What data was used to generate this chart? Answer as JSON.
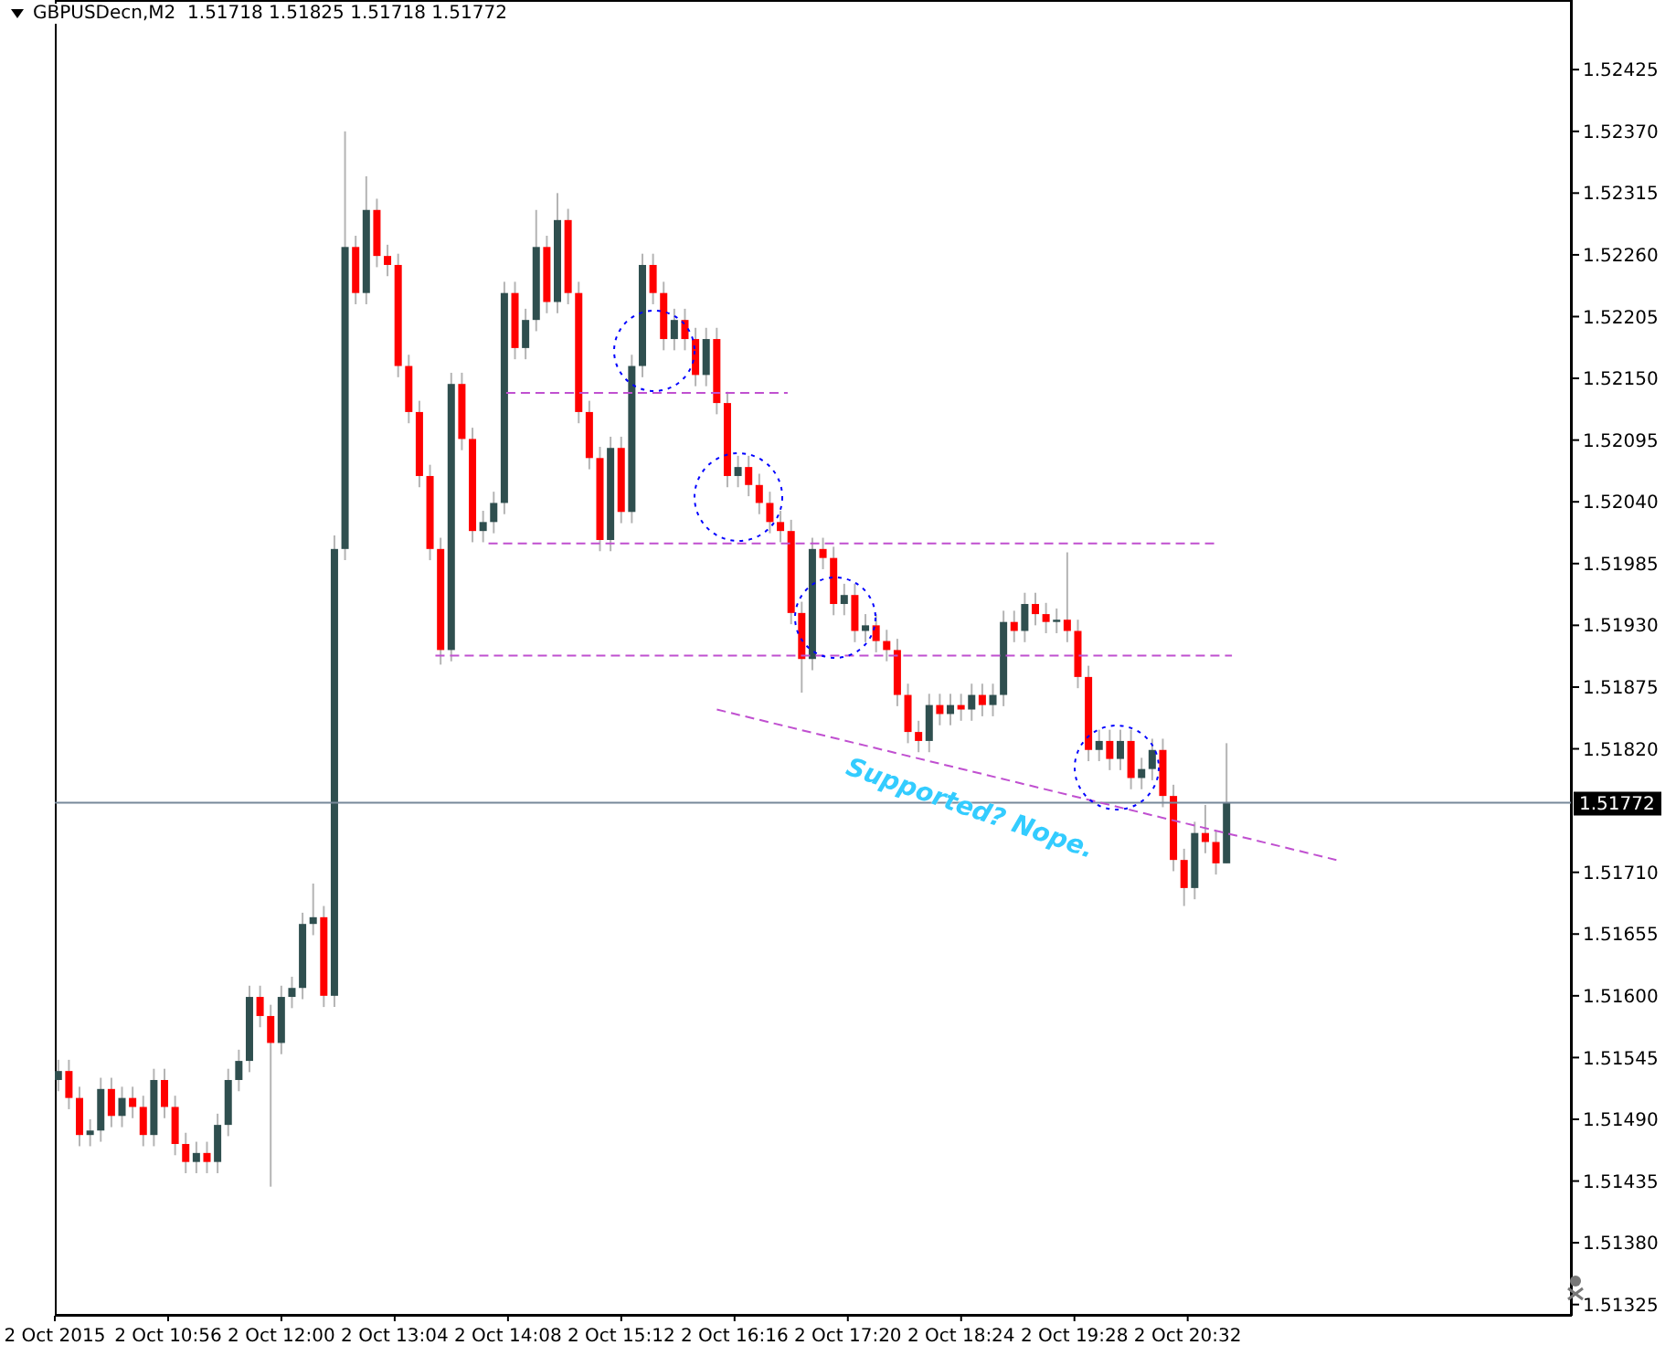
{
  "chart_data": {
    "type": "candlestick",
    "title": "GBPUSDecn,M2  1.51718 1.51825 1.51718 1.51772",
    "x": [
      "2015-10-02T09:54",
      "2015-10-02T10:00",
      "2015-10-02T10:06",
      "2015-10-02T10:12",
      "2015-10-02T10:18",
      "2015-10-02T10:24",
      "2015-10-02T10:30",
      "2015-10-02T10:36",
      "2015-10-02T10:42",
      "2015-10-02T10:48",
      "2015-10-02T10:54",
      "2015-10-02T11:00",
      "2015-10-02T11:06",
      "2015-10-02T11:12",
      "2015-10-02T11:18",
      "2015-10-02T11:24",
      "2015-10-02T11:30",
      "2015-10-02T11:36",
      "2015-10-02T11:42",
      "2015-10-02T11:48",
      "2015-10-02T11:54",
      "2015-10-02T12:00",
      "2015-10-02T12:06",
      "2015-10-02T12:12",
      "2015-10-02T12:18",
      "2015-10-02T12:24",
      "2015-10-02T12:30",
      "2015-10-02T12:36",
      "2015-10-02T12:42",
      "2015-10-02T12:48",
      "2015-10-02T12:54",
      "2015-10-02T13:00",
      "2015-10-02T13:06",
      "2015-10-02T13:12",
      "2015-10-02T13:18",
      "2015-10-02T13:24",
      "2015-10-02T13:30",
      "2015-10-02T13:36",
      "2015-10-02T13:42",
      "2015-10-02T13:48",
      "2015-10-02T13:54",
      "2015-10-02T14:00",
      "2015-10-02T14:06",
      "2015-10-02T14:12",
      "2015-10-02T14:18",
      "2015-10-02T14:24",
      "2015-10-02T14:30",
      "2015-10-02T14:36",
      "2015-10-02T14:42",
      "2015-10-02T14:48",
      "2015-10-02T14:54",
      "2015-10-02T15:00",
      "2015-10-02T15:06",
      "2015-10-02T15:12",
      "2015-10-02T15:18",
      "2015-10-02T15:24",
      "2015-10-02T15:30",
      "2015-10-02T15:36",
      "2015-10-02T15:42",
      "2015-10-02T15:48",
      "2015-10-02T15:54",
      "2015-10-02T16:00",
      "2015-10-02T16:06",
      "2015-10-02T16:12",
      "2015-10-02T16:18",
      "2015-10-02T16:24",
      "2015-10-02T16:30",
      "2015-10-02T16:36",
      "2015-10-02T16:42",
      "2015-10-02T16:48",
      "2015-10-02T16:54",
      "2015-10-02T17:00",
      "2015-10-02T17:06",
      "2015-10-02T17:12",
      "2015-10-02T17:18",
      "2015-10-02T17:24",
      "2015-10-02T17:30",
      "2015-10-02T17:36",
      "2015-10-02T17:42",
      "2015-10-02T17:48",
      "2015-10-02T17:54",
      "2015-10-02T18:00",
      "2015-10-02T18:06",
      "2015-10-02T18:12",
      "2015-10-02T18:18",
      "2015-10-02T18:24",
      "2015-10-02T18:30",
      "2015-10-02T18:36",
      "2015-10-02T18:42",
      "2015-10-02T18:48",
      "2015-10-02T18:54",
      "2015-10-02T19:00",
      "2015-10-02T19:06",
      "2015-10-02T19:12",
      "2015-10-02T19:18",
      "2015-10-02T19:24",
      "2015-10-02T19:30",
      "2015-10-02T19:36",
      "2015-10-02T19:42",
      "2015-10-02T19:48",
      "2015-10-02T19:54",
      "2015-10-02T20:00",
      "2015-10-02T20:06",
      "2015-10-02T20:12",
      "2015-10-02T20:18",
      "2015-10-02T20:24",
      "2015-10-02T20:30",
      "2015-10-02T20:36",
      "2015-10-02T20:42",
      "2015-10-02T20:48",
      "2015-10-02T20:54"
    ],
    "ohlc": [
      [
        1.51525,
        1.51543,
        1.51515,
        1.51533
      ],
      [
        1.51533,
        1.51543,
        1.51499,
        1.51509
      ],
      [
        1.51509,
        1.51519,
        1.51466,
        1.51476
      ],
      [
        1.51476,
        1.5149,
        1.51466,
        1.5148
      ],
      [
        1.5148,
        1.51527,
        1.5147,
        1.51517
      ],
      [
        1.51517,
        1.51527,
        1.51483,
        1.51493
      ],
      [
        1.51493,
        1.51519,
        1.51483,
        1.51509
      ],
      [
        1.51509,
        1.51519,
        1.51491,
        1.51501
      ],
      [
        1.51501,
        1.51511,
        1.51466,
        1.51476
      ],
      [
        1.51476,
        1.51535,
        1.51466,
        1.51525
      ],
      [
        1.51525,
        1.51535,
        1.51491,
        1.51501
      ],
      [
        1.51501,
        1.51511,
        1.51458,
        1.51468
      ],
      [
        1.51468,
        1.51478,
        1.51442,
        1.51452
      ],
      [
        1.51452,
        1.5147,
        1.51442,
        1.5146
      ],
      [
        1.5146,
        1.5147,
        1.51442,
        1.51452
      ],
      [
        1.51452,
        1.51495,
        1.51442,
        1.51485
      ],
      [
        1.51485,
        1.51535,
        1.51475,
        1.51525
      ],
      [
        1.51525,
        1.51552,
        1.51515,
        1.51542
      ],
      [
        1.51542,
        1.51609,
        1.51532,
        1.51599
      ],
      [
        1.51599,
        1.51609,
        1.51572,
        1.51582
      ],
      [
        1.51582,
        1.51592,
        1.5143,
        1.51558
      ],
      [
        1.51558,
        1.51609,
        1.51548,
        1.51599
      ],
      [
        1.51599,
        1.51617,
        1.51589,
        1.51607
      ],
      [
        1.51607,
        1.51674,
        1.51597,
        1.51664
      ],
      [
        1.51664,
        1.517,
        1.51654,
        1.5167
      ],
      [
        1.5167,
        1.5168,
        1.5159,
        1.516
      ],
      [
        1.516,
        1.5201,
        1.5159,
        1.51998
      ],
      [
        1.51998,
        1.5237,
        1.51988,
        1.52267
      ],
      [
        1.52267,
        1.52277,
        1.52216,
        1.52226
      ],
      [
        1.52226,
        1.5233,
        1.52216,
        1.523
      ],
      [
        1.523,
        1.5231,
        1.52249,
        1.52259
      ],
      [
        1.52259,
        1.52269,
        1.52241,
        1.52251
      ],
      [
        1.52251,
        1.52261,
        1.52151,
        1.52161
      ],
      [
        1.52161,
        1.52171,
        1.5211,
        1.5212
      ],
      [
        1.5212,
        1.5213,
        1.52053,
        1.52063
      ],
      [
        1.52063,
        1.52073,
        1.51988,
        1.51998
      ],
      [
        1.51998,
        1.52008,
        1.51895,
        1.51908
      ],
      [
        1.51908,
        1.52155,
        1.51898,
        1.52145
      ],
      [
        1.52145,
        1.52155,
        1.52086,
        1.52096
      ],
      [
        1.52096,
        1.52106,
        1.52004,
        1.52014
      ],
      [
        1.52014,
        1.52032,
        1.52004,
        1.52022
      ],
      [
        1.52022,
        1.52049,
        1.52012,
        1.52039
      ],
      [
        1.52039,
        1.52236,
        1.52029,
        1.52226
      ],
      [
        1.52226,
        1.52236,
        1.52167,
        1.52177
      ],
      [
        1.52177,
        1.52212,
        1.52167,
        1.52202
      ],
      [
        1.52202,
        1.523,
        1.52192,
        1.52267
      ],
      [
        1.52267,
        1.52277,
        1.52208,
        1.52218
      ],
      [
        1.52218,
        1.52315,
        1.52208,
        1.52291
      ],
      [
        1.52291,
        1.52301,
        1.52216,
        1.52226
      ],
      [
        1.52226,
        1.52236,
        1.5211,
        1.5212
      ],
      [
        1.5212,
        1.5213,
        1.52069,
        1.52079
      ],
      [
        1.52079,
        1.52089,
        1.51996,
        1.52006
      ],
      [
        1.52006,
        1.52098,
        1.51996,
        1.52088
      ],
      [
        1.52088,
        1.52098,
        1.52021,
        1.52031
      ],
      [
        1.52031,
        1.52171,
        1.52021,
        1.52161
      ],
      [
        1.52161,
        1.52261,
        1.52151,
        1.52251
      ],
      [
        1.52251,
        1.52261,
        1.52216,
        1.52226
      ],
      [
        1.52226,
        1.52236,
        1.52175,
        1.52185
      ],
      [
        1.52185,
        1.52212,
        1.52175,
        1.52202
      ],
      [
        1.52202,
        1.52212,
        1.52175,
        1.52185
      ],
      [
        1.52185,
        1.52195,
        1.52143,
        1.52153
      ],
      [
        1.52153,
        1.52195,
        1.52143,
        1.52185
      ],
      [
        1.52185,
        1.52195,
        1.52118,
        1.52128
      ],
      [
        1.52128,
        1.52138,
        1.52053,
        1.52063
      ],
      [
        1.52063,
        1.52081,
        1.52053,
        1.52071
      ],
      [
        1.52071,
        1.52081,
        1.52045,
        1.52055
      ],
      [
        1.52055,
        1.52065,
        1.52029,
        1.52039
      ],
      [
        1.52039,
        1.52049,
        1.52012,
        1.52022
      ],
      [
        1.52022,
        1.52032,
        1.52004,
        1.52014
      ],
      [
        1.52014,
        1.52024,
        1.51931,
        1.51941
      ],
      [
        1.51941,
        1.51951,
        1.5187,
        1.519
      ],
      [
        1.519,
        1.52008,
        1.5189,
        1.51998
      ],
      [
        1.51998,
        1.52008,
        1.5198,
        1.5199
      ],
      [
        1.5199,
        1.52,
        1.51939,
        1.51949
      ],
      [
        1.51949,
        1.51967,
        1.51939,
        1.51957
      ],
      [
        1.51957,
        1.51967,
        1.51915,
        1.51925
      ],
      [
        1.51925,
        1.5194,
        1.51915,
        1.5193
      ],
      [
        1.5193,
        1.5194,
        1.51906,
        1.51916
      ],
      [
        1.51916,
        1.51926,
        1.51898,
        1.51908
      ],
      [
        1.51908,
        1.51918,
        1.51858,
        1.51868
      ],
      [
        1.51868,
        1.51878,
        1.51825,
        1.51835
      ],
      [
        1.51835,
        1.51845,
        1.51817,
        1.51827
      ],
      [
        1.51827,
        1.51869,
        1.51817,
        1.51859
      ],
      [
        1.51859,
        1.51869,
        1.51841,
        1.51851
      ],
      [
        1.51851,
        1.51869,
        1.51841,
        1.51859
      ],
      [
        1.51859,
        1.51869,
        1.51845,
        1.51855
      ],
      [
        1.51855,
        1.51878,
        1.51845,
        1.51868
      ],
      [
        1.51868,
        1.51878,
        1.51849,
        1.51859
      ],
      [
        1.51859,
        1.51878,
        1.51849,
        1.51868
      ],
      [
        1.51868,
        1.51943,
        1.51858,
        1.51933
      ],
      [
        1.51933,
        1.51943,
        1.51915,
        1.51925
      ],
      [
        1.51925,
        1.51959,
        1.51915,
        1.51949
      ],
      [
        1.51949,
        1.51959,
        1.5193,
        1.5194
      ],
      [
        1.5194,
        1.5195,
        1.51923,
        1.51933
      ],
      [
        1.51933,
        1.51945,
        1.51923,
        1.51935
      ],
      [
        1.51935,
        1.51995,
        1.51915,
        1.51925
      ],
      [
        1.51925,
        1.51935,
        1.51874,
        1.51884
      ],
      [
        1.51884,
        1.51894,
        1.51809,
        1.51819
      ],
      [
        1.51819,
        1.51837,
        1.51809,
        1.51827
      ],
      [
        1.51827,
        1.51837,
        1.51801,
        1.51811
      ],
      [
        1.51811,
        1.51837,
        1.51801,
        1.51827
      ],
      [
        1.51827,
        1.51837,
        1.51784,
        1.51794
      ],
      [
        1.51794,
        1.51812,
        1.51784,
        1.51802
      ],
      [
        1.51802,
        1.51829,
        1.51792,
        1.51819
      ],
      [
        1.51819,
        1.51829,
        1.51768,
        1.51778
      ],
      [
        1.51778,
        1.51788,
        1.51711,
        1.51721
      ],
      [
        1.51721,
        1.51731,
        1.5168,
        1.51696
      ],
      [
        1.51696,
        1.51755,
        1.51686,
        1.51745
      ],
      [
        1.51745,
        1.5177,
        1.51727,
        1.51737
      ],
      [
        1.51737,
        1.51747,
        1.51708,
        1.51718
      ],
      [
        1.51718,
        1.51825,
        1.51718,
        1.51772
      ]
    ],
    "colors": [
      "#2f4f4f",
      "#ff0000",
      "#ff0000",
      "#2f4f4f",
      "#2f4f4f",
      "#ff0000",
      "#2f4f4f",
      "#ff0000",
      "#ff0000",
      "#2f4f4f",
      "#ff0000",
      "#ff0000",
      "#ff0000",
      "#2f4f4f",
      "#ff0000",
      "#2f4f4f",
      "#2f4f4f",
      "#2f4f4f",
      "#2f4f4f",
      "#ff0000",
      "#ff0000",
      "#2f4f4f",
      "#2f4f4f",
      "#2f4f4f",
      "#2f4f4f",
      "#ff0000",
      "#2f4f4f",
      "#2f4f4f",
      "#ff0000",
      "#2f4f4f",
      "#ff0000",
      "#ff0000",
      "#ff0000",
      "#ff0000",
      "#ff0000",
      "#ff0000",
      "#ff0000",
      "#2f4f4f",
      "#ff0000",
      "#ff0000",
      "#2f4f4f",
      "#2f4f4f",
      "#2f4f4f",
      "#ff0000",
      "#2f4f4f",
      "#2f4f4f",
      "#ff0000",
      "#2f4f4f",
      "#ff0000",
      "#ff0000",
      "#ff0000",
      "#ff0000",
      "#2f4f4f",
      "#ff0000",
      "#2f4f4f",
      "#2f4f4f",
      "#ff0000",
      "#ff0000",
      "#2f4f4f",
      "#ff0000",
      "#ff0000",
      "#2f4f4f",
      "#ff0000",
      "#ff0000",
      "#2f4f4f",
      "#ff0000",
      "#ff0000",
      "#ff0000",
      "#ff0000",
      "#ff0000",
      "#ff0000",
      "#2f4f4f",
      "#ff0000",
      "#ff0000",
      "#2f4f4f",
      "#ff0000",
      "#2f4f4f",
      "#ff0000",
      "#ff0000",
      "#ff0000",
      "#ff0000",
      "#ff0000",
      "#2f4f4f",
      "#ff0000",
      "#2f4f4f",
      "#ff0000",
      "#2f4f4f",
      "#ff0000",
      "#2f4f4f",
      "#2f4f4f",
      "#ff0000",
      "#2f4f4f",
      "#ff0000",
      "#ff0000",
      "#2f4f4f",
      "#ff0000",
      "#ff0000",
      "#ff0000",
      "#2f4f4f",
      "#ff0000",
      "#2f4f4f",
      "#ff0000",
      "#2f4f4f",
      "#2f4f4f",
      "#ff0000",
      "#ff0000",
      "#ff0000",
      "#2f4f4f",
      "#ff0000",
      "#ff0000",
      "#2f4f4f"
    ],
    "series": [
      {
        "type": "line",
        "x": [
          "2015-10-02T14:07",
          "2015-10-02T16:46"
        ],
        "values": [
          1.52137,
          1.52137
        ],
        "color": "#c050d0",
        "line_style": "dashed"
      },
      {
        "type": "line",
        "x": [
          "2015-10-02T13:57",
          "2015-10-02T20:49"
        ],
        "values": [
          1.52003,
          1.52003
        ],
        "color": "#c050d0",
        "line_style": "dashed"
      },
      {
        "type": "line",
        "x": [
          "2015-10-02T13:27",
          "2015-10-02T20:57"
        ],
        "values": [
          1.51903,
          1.51903
        ],
        "color": "#c050d0",
        "line_style": "dashed"
      },
      {
        "type": "line",
        "x": [
          "2015-10-02T16:06",
          "2015-10-02T21:56"
        ],
        "values": [
          1.51855,
          1.51721
        ],
        "color": "#c050d0",
        "line_style": "dashed"
      }
    ],
    "ref_lines": [
      {
        "axis": "y",
        "value": 1.51772,
        "label": "1.51772",
        "color": "#778899"
      }
    ],
    "annotations": [
      "Supported? Nope."
    ],
    "marker": "none",
    "xlim": [
      "2015-10-02T09:52",
      "2015-10-03T00:09"
    ],
    "xticks": [
      {
        "value": "2015-10-02T09:52",
        "label": "2 Oct 2015"
      },
      {
        "value": "2015-10-02T10:56",
        "label": "2 Oct 10:56"
      },
      {
        "value": "2015-10-02T12:00",
        "label": "2 Oct 12:00"
      },
      {
        "value": "2015-10-02T13:04",
        "label": "2 Oct 13:04"
      },
      {
        "value": "2015-10-02T14:08",
        "label": "2 Oct 14:08"
      },
      {
        "value": "2015-10-02T15:12",
        "label": "2 Oct 15:12"
      },
      {
        "value": "2015-10-02T16:16",
        "label": "2 Oct 16:16"
      },
      {
        "value": "2015-10-02T17:20",
        "label": "2 Oct 17:20"
      },
      {
        "value": "2015-10-02T18:24",
        "label": "2 Oct 18:24"
      },
      {
        "value": "2015-10-02T19:28",
        "label": "2 Oct 19:28"
      },
      {
        "value": "2015-10-02T20:32",
        "label": "2 Oct 20:32"
      }
    ],
    "ylim": [
      1.51315,
      1.52487
    ],
    "yticks": [
      1.51325,
      {
        "value": 1.5138,
        "label": "1.51380"
      },
      1.51435,
      {
        "value": 1.5149,
        "label": "1.51490"
      },
      1.51545,
      {
        "value": 1.516,
        "label": "1.51600"
      },
      1.51655,
      {
        "value": 1.5171,
        "label": "1.51710"
      },
      {
        "value": 1.5182,
        "label": "1.51820"
      },
      1.51875,
      {
        "value": 1.5193,
        "label": "1.51930"
      },
      1.51985,
      {
        "value": 1.5204,
        "label": "1.52040"
      },
      1.52095,
      {
        "value": 1.5215,
        "label": "1.52150"
      },
      1.52205,
      {
        "value": 1.5226,
        "label": "1.52260"
      },
      1.52315,
      {
        "value": 1.5237,
        "label": "1.52370"
      },
      1.52425
    ]
  }
}
